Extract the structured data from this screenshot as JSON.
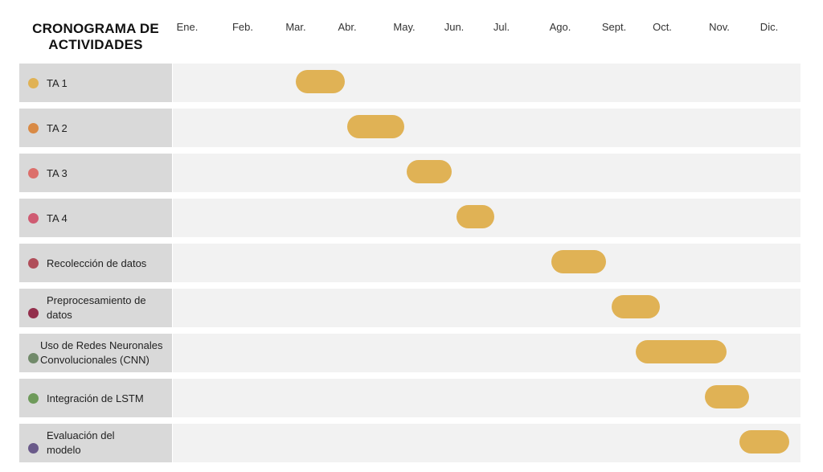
{
  "chart_data": {
    "type": "gantt",
    "title": [
      "CRONOGRAMA DE",
      "ACTIVIDADES"
    ],
    "months": [
      "Ene.",
      "Feb.",
      "Mar.",
      "Abr.",
      "May.",
      "Jun.",
      "Jul.",
      "Ago.",
      "Sept.",
      "Oct.",
      "Nov.",
      "Dic."
    ],
    "bar_color": "#e0b255",
    "tasks": [
      {
        "label": "TA 1",
        "lines": [
          "TA 1"
        ],
        "dot_color": "#e0b255",
        "start": 2.0,
        "end": 2.95
      },
      {
        "label": "TA 2",
        "lines": [
          "TA 2"
        ],
        "dot_color": "#d98a45",
        "start": 3.0,
        "end": 4.0
      },
      {
        "label": "TA 3",
        "lines": [
          "TA 3"
        ],
        "dot_color": "#dc6f6b",
        "start": 4.05,
        "end": 4.95
      },
      {
        "label": "TA 4",
        "lines": [
          "TA 4"
        ],
        "dot_color": "#cf5b72",
        "start": 5.05,
        "end": 5.85
      },
      {
        "label": "Recolección de datos",
        "lines": [
          "Recolección de datos"
        ],
        "dot_color": "#b04e5a",
        "start": 6.85,
        "end": 7.85
      },
      {
        "label": "Preprocesamiento de datos",
        "lines": [
          "Preprocesamiento de",
          "datos"
        ],
        "dot_color": "#932f4c",
        "start": 7.95,
        "end": 8.95
      },
      {
        "label": "Uso de Redes Neuronales Convolucionales (CNN)",
        "lines": [
          "Uso de Redes Neuronales",
          "Convolucionales (CNN)"
        ],
        "dot_color": "#718a6a",
        "start": 8.45,
        "end": 10.15
      },
      {
        "label": "Integración de LSTM",
        "lines": [
          "Integración de LSTM"
        ],
        "dot_color": "#6e9a5a",
        "start": 9.75,
        "end": 10.6
      },
      {
        "label": "Evaluación del modelo",
        "lines": [
          "Evaluación del",
          "modelo"
        ],
        "dot_color": "#6a5a8a",
        "start": 10.4,
        "end": 11.4
      }
    ]
  }
}
